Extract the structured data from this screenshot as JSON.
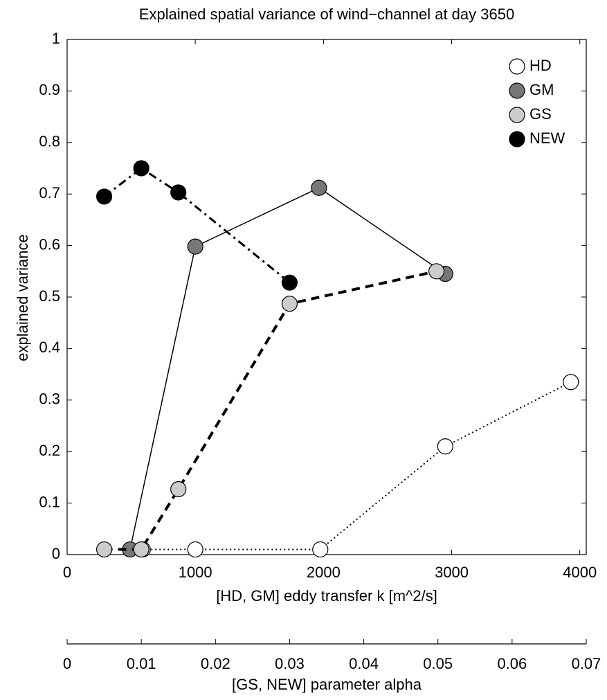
{
  "chart_data": {
    "type": "line",
    "title": "Explained spatial variance of wind−channel at day 3650",
    "x_label": "[HD, GM] eddy transfer k [m^2/s]",
    "x2_label": "[GS, NEW] parameter alpha",
    "y_label": "explained variance",
    "xlim": [
      0,
      4050
    ],
    "xticks": [
      0,
      1000,
      2000,
      3000,
      4000
    ],
    "x2lim": [
      0,
      0.07
    ],
    "x2ticks": [
      0,
      0.01,
      0.02,
      0.03,
      0.04,
      0.05,
      0.06,
      0.07
    ],
    "ylim": [
      0,
      1
    ],
    "yticks": [
      0,
      0.1,
      0.2,
      0.3,
      0.4,
      0.5,
      0.6,
      0.7,
      0.8,
      0.9,
      1
    ],
    "legend": "top-right",
    "series": [
      {
        "name": "HD",
        "color": "#ffffff",
        "line_style": "dotted",
        "x": [
          590,
          1000,
          1975,
          2950,
          3930
        ],
        "values": [
          0.01,
          0.01,
          0.01,
          0.21,
          0.335
        ]
      },
      {
        "name": "GM",
        "color": "#777777",
        "line_style": "solid",
        "x": [
          491,
          1000,
          1965,
          2950
        ],
        "values": [
          0.01,
          0.598,
          0.712,
          0.545
        ]
      },
      {
        "name": "GS",
        "color": "#cccccc",
        "line_style": "dashed",
        "axis": "x2",
        "x": [
          0.005,
          0.01,
          0.015,
          0.03,
          0.0498
        ],
        "values": [
          0.01,
          0.01,
          0.127,
          0.487,
          0.55
        ]
      },
      {
        "name": "NEW",
        "color": "#000000",
        "line_style": "dashdot",
        "axis": "x2",
        "x": [
          0.005,
          0.01,
          0.015,
          0.03
        ],
        "values": [
          0.695,
          0.75,
          0.703,
          0.528
        ]
      }
    ]
  }
}
